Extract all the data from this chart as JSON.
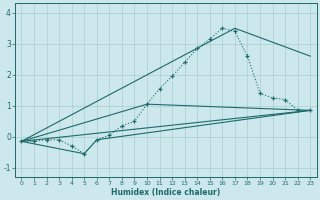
{
  "xlabel": "Humidex (Indice chaleur)",
  "bg_color": "#cce8ec",
  "grid_color": "#aacccc",
  "line_color": "#1a6b6b",
  "xlim": [
    -0.5,
    23.5
  ],
  "ylim": [
    -1.3,
    4.3
  ],
  "xticks": [
    0,
    1,
    2,
    3,
    4,
    5,
    6,
    7,
    8,
    9,
    10,
    11,
    12,
    13,
    14,
    15,
    16,
    17,
    18,
    19,
    20,
    21,
    22,
    23
  ],
  "yticks": [
    -1,
    0,
    1,
    2,
    3,
    4
  ],
  "line1_x": [
    0,
    1,
    2,
    3,
    4,
    5,
    6,
    7,
    8,
    9,
    10,
    11,
    12,
    13,
    14,
    15,
    16,
    17,
    18,
    19,
    20,
    21,
    22,
    23
  ],
  "line1_y": [
    -0.15,
    -0.15,
    -0.1,
    -0.1,
    -0.3,
    -0.55,
    -0.1,
    0.05,
    0.35,
    0.5,
    1.05,
    1.55,
    1.95,
    2.4,
    2.85,
    3.15,
    3.5,
    3.4,
    2.6,
    1.4,
    1.25,
    1.2,
    0.85,
    0.85
  ],
  "line2_x": [
    0,
    23
  ],
  "line2_y": [
    -0.15,
    0.85
  ],
  "line3_x": [
    0,
    5,
    6,
    23
  ],
  "line3_y": [
    -0.15,
    -0.55,
    -0.1,
    0.85
  ],
  "line4_x": [
    0,
    10,
    23
  ],
  "line4_y": [
    -0.15,
    1.05,
    0.85
  ],
  "line5_x": [
    0,
    17,
    23
  ],
  "line5_y": [
    -0.15,
    3.5,
    2.6
  ]
}
